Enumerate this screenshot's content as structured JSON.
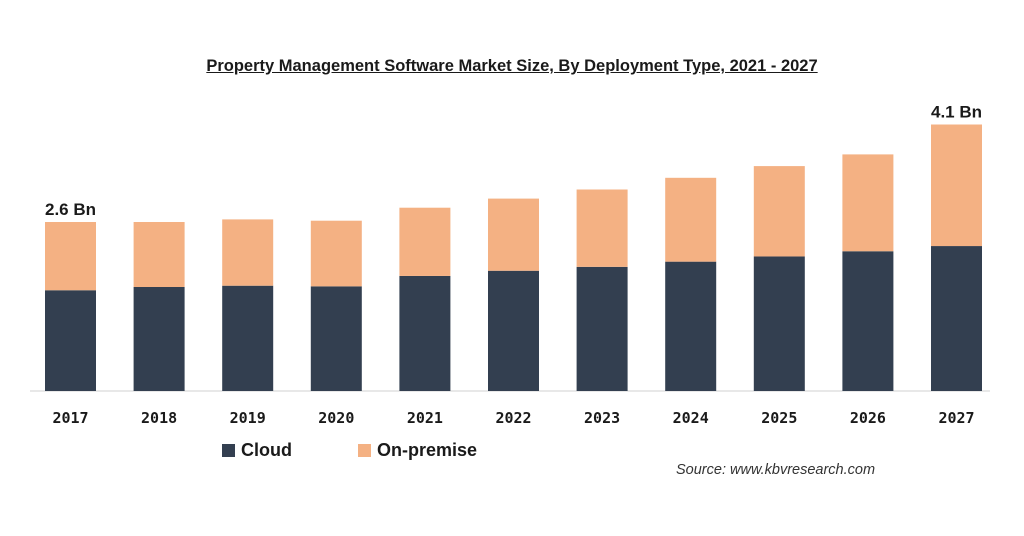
{
  "chart_data": {
    "type": "bar",
    "stacked": true,
    "title": "Property Management Software Market Size, By Deployment Type, 2021 - 2027",
    "categories": [
      "2017",
      "2018",
      "2019",
      "2020",
      "2021",
      "2022",
      "2023",
      "2024",
      "2025",
      "2026",
      "2027"
    ],
    "series": [
      {
        "name": "Cloud",
        "color": "#333f50",
        "values": [
          1.55,
          1.6,
          1.62,
          1.61,
          1.77,
          1.85,
          1.91,
          1.99,
          2.07,
          2.15,
          2.23
        ]
      },
      {
        "name": "On-premise",
        "color": "#f4b183",
        "values": [
          1.05,
          1.0,
          1.02,
          1.01,
          1.05,
          1.11,
          1.19,
          1.29,
          1.39,
          1.49,
          1.87
        ]
      }
    ],
    "annotations": [
      {
        "category": "2017",
        "text": "2.6 Bn"
      },
      {
        "category": "2027",
        "text": "4.1 Bn"
      }
    ],
    "ylim": [
      0,
      4.5
    ],
    "grid": false,
    "legend_position": "bottom-left"
  },
  "source_text": "Source: www.kbvresearch.com"
}
